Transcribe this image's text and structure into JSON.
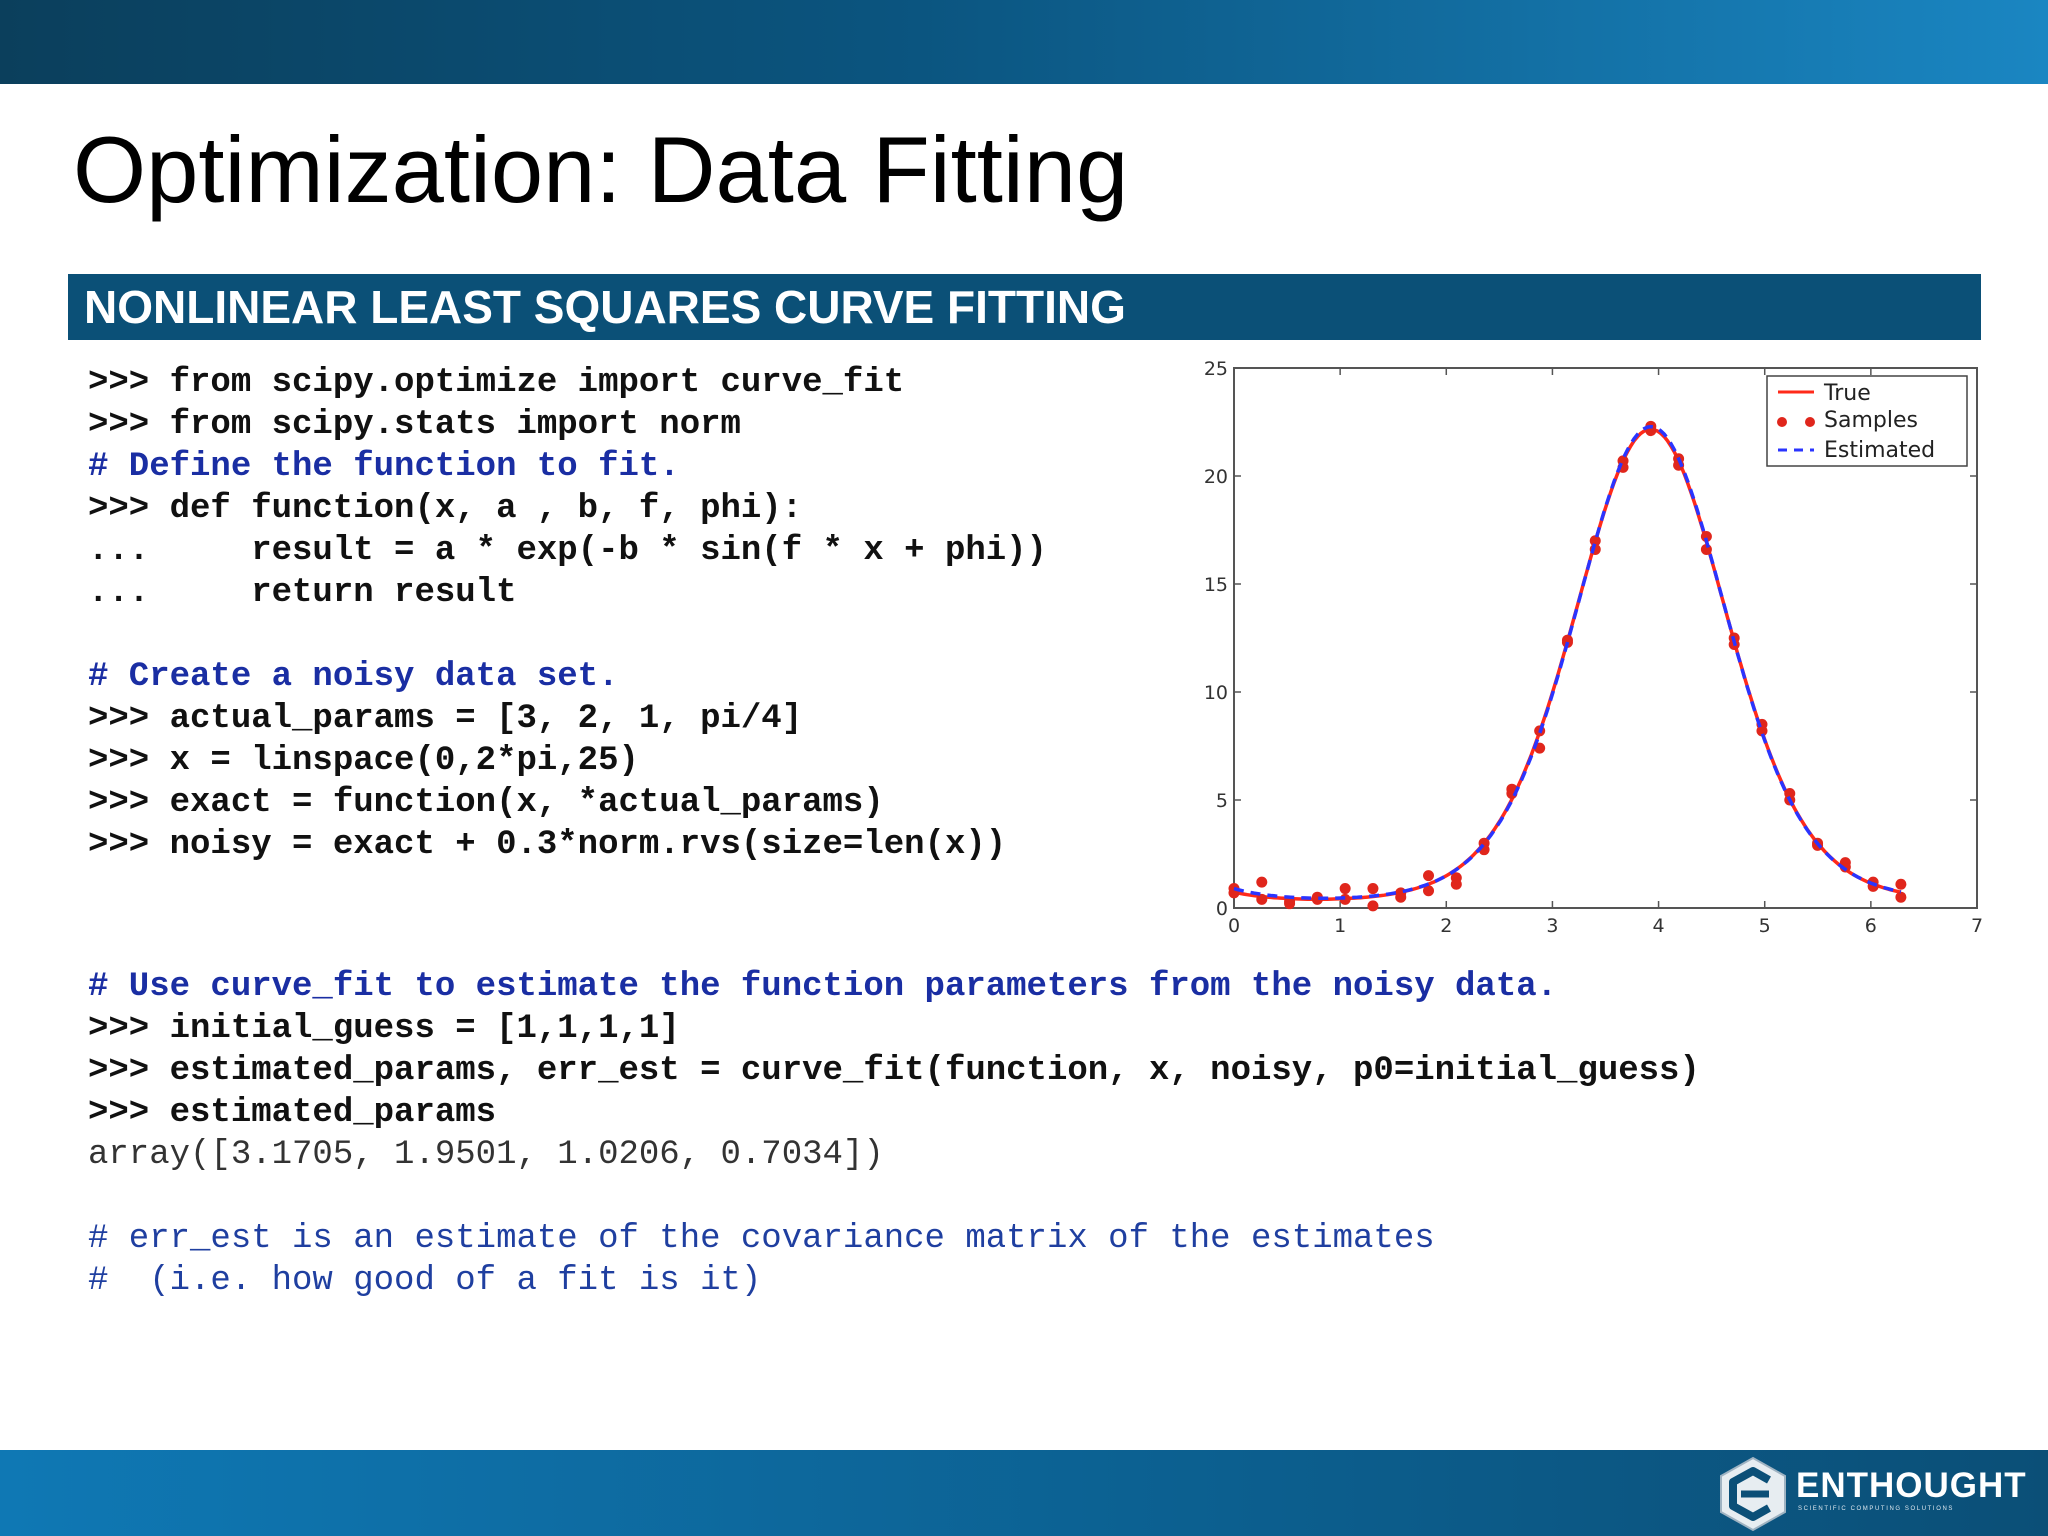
{
  "slide": {
    "title": "Optimization: Data Fitting",
    "section_title": "NONLINEAR LEAST SQUARES CURVE FITTING"
  },
  "code": {
    "block1": [
      {
        "text": ">>> from scipy.optimize import curve_fit",
        "style": "cmd"
      },
      {
        "text": ">>> from scipy.stats import norm",
        "style": "cmd"
      },
      {
        "text": "# Define the function to fit.",
        "style": "comment"
      },
      {
        "text": ">>> def function(x, a , b, f, phi):",
        "style": "cmd"
      },
      {
        "text": "...     result = a * exp(-b * sin(f * x + phi))",
        "style": "cmd"
      },
      {
        "text": "...     return result",
        "style": "cmd"
      }
    ],
    "block2": [
      {
        "text": "# Create a noisy data set.",
        "style": "comment"
      },
      {
        "text": ">>> actual_params = [3, 2, 1, pi/4]",
        "style": "cmd"
      },
      {
        "text": ">>> x = linspace(0,2*pi,25)",
        "style": "cmd"
      },
      {
        "text": ">>> exact = function(x, *actual_params)",
        "style": "cmd"
      },
      {
        "text": ">>> noisy = exact + 0.3*norm.rvs(size=len(x))",
        "style": "cmd"
      }
    ],
    "block3": [
      {
        "text": "# Use curve_fit to estimate the function parameters from the noisy data.",
        "style": "comment"
      },
      {
        "text": ">>> initial_guess = [1,1,1,1]",
        "style": "cmd"
      },
      {
        "text": ">>> estimated_params, err_est = curve_fit(function, x, noisy, p0=initial_guess)",
        "style": "cmd"
      },
      {
        "text": ">>> estimated_params",
        "style": "cmd"
      },
      {
        "text": "array([3.1705, 1.9501, 1.0206, 0.7034])",
        "style": "output"
      }
    ],
    "block4": [
      {
        "text": "# err_est is an estimate of the covariance matrix of the estimates",
        "style": "note"
      },
      {
        "text": "#  (i.e. how good of a fit is it)",
        "style": "note"
      }
    ]
  },
  "chart_data": {
    "type": "line",
    "title": "",
    "xlabel": "",
    "ylabel": "",
    "xlim": [
      0,
      7
    ],
    "ylim": [
      0,
      25
    ],
    "x_ticks": [
      "0",
      "1",
      "2",
      "3",
      "4",
      "5",
      "6",
      "7"
    ],
    "y_ticks": [
      "0",
      "5",
      "10",
      "15",
      "20",
      "25"
    ],
    "grid": false,
    "legend_position": "top-right",
    "series": [
      {
        "name": "True",
        "kind": "line",
        "color": "#ff2a1a",
        "line_style": "solid",
        "function": {
          "a": 3,
          "b": 2,
          "f": 1,
          "phi": 0.7854
        }
      },
      {
        "name": "Samples",
        "kind": "scatter",
        "color": "#e0261c",
        "x": [
          0,
          0.2618,
          0.5236,
          0.7854,
          1.0472,
          1.309,
          1.5708,
          1.8326,
          2.0944,
          2.3562,
          2.618,
          2.8798,
          3.1416,
          3.4034,
          3.6652,
          3.927,
          4.1888,
          4.4506,
          4.7124,
          4.9742,
          5.236,
          5.4978,
          5.7596,
          6.0214,
          6.2832
        ],
        "y": [
          0.7,
          1.2,
          0.3,
          0.5,
          0.4,
          0.9,
          0.5,
          0.8,
          1.4,
          3.0,
          5.3,
          8.2,
          12.4,
          17.0,
          20.7,
          22.1,
          20.8,
          17.2,
          12.5,
          8.5,
          5.0,
          2.9,
          2.1,
          1.2,
          1.1
        ],
        "y_second": [
          0.9,
          0.4,
          0.2,
          0.4,
          0.9,
          0.1,
          0.7,
          1.5,
          1.1,
          2.7,
          5.5,
          7.4,
          12.3,
          16.6,
          20.4,
          22.3,
          20.5,
          16.6,
          12.2,
          8.2,
          5.3,
          3.0,
          1.9,
          1.0,
          0.5
        ]
      },
      {
        "name": "Estimated",
        "kind": "line",
        "color": "#2a34ff",
        "line_style": "dashed",
        "function": {
          "a": 3.1705,
          "b": 1.9501,
          "f": 1.0206,
          "phi": 0.7034
        }
      }
    ]
  },
  "logo": {
    "text": "ENTHOUGHT",
    "tagline": "SCIENTIFIC COMPUTING SOLUTIONS",
    "icon": "enthought-e-icon"
  }
}
